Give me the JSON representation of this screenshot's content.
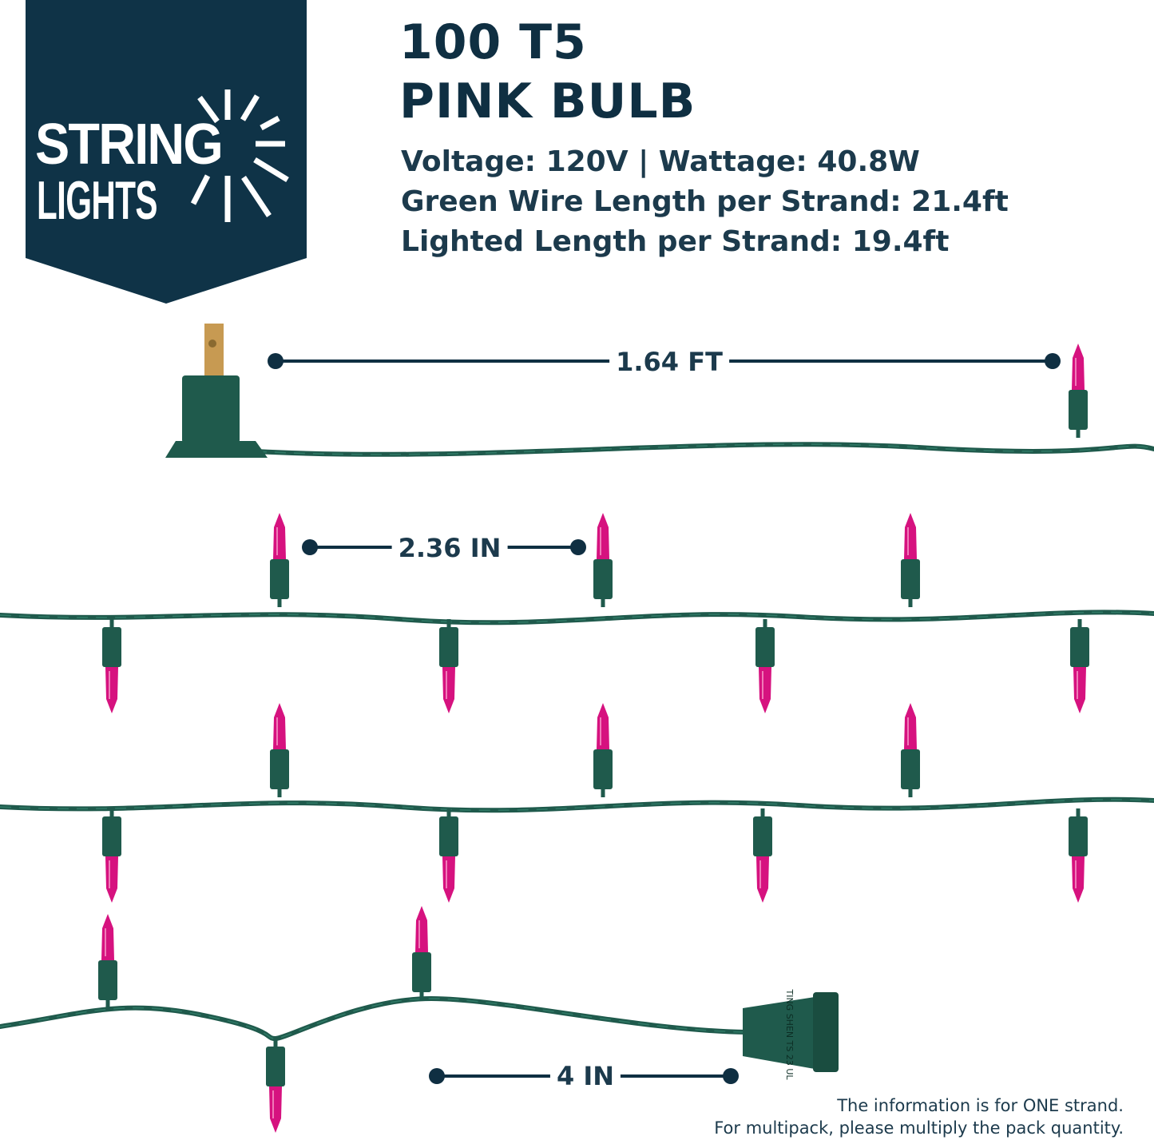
{
  "logo": {
    "line1": "STRING",
    "line2": "LIGHTS",
    "badge_color": "#0f3347"
  },
  "title": {
    "line1": "100 T5",
    "line2": "PINK BULB"
  },
  "specs": [
    "Voltage: 120V | Wattage: 40.8W",
    "Green Wire Length per Strand: 21.4ft",
    "Lighted Length per Strand: 19.4ft"
  ],
  "dimensions": {
    "lead_length": "1.64 FT",
    "bulb_spacing": "2.36 IN",
    "end_length": "4 IN"
  },
  "connector_marking": "TING SHEN TS 23 UL",
  "note": {
    "line1": "The information is for ONE strand.",
    "line2": "For multipack, please multiply the pack quantity."
  },
  "colors": {
    "wire": "#1f5a4c",
    "bulb": "#d6127f",
    "text": "#0f2f42",
    "prong": "#c79a52"
  }
}
